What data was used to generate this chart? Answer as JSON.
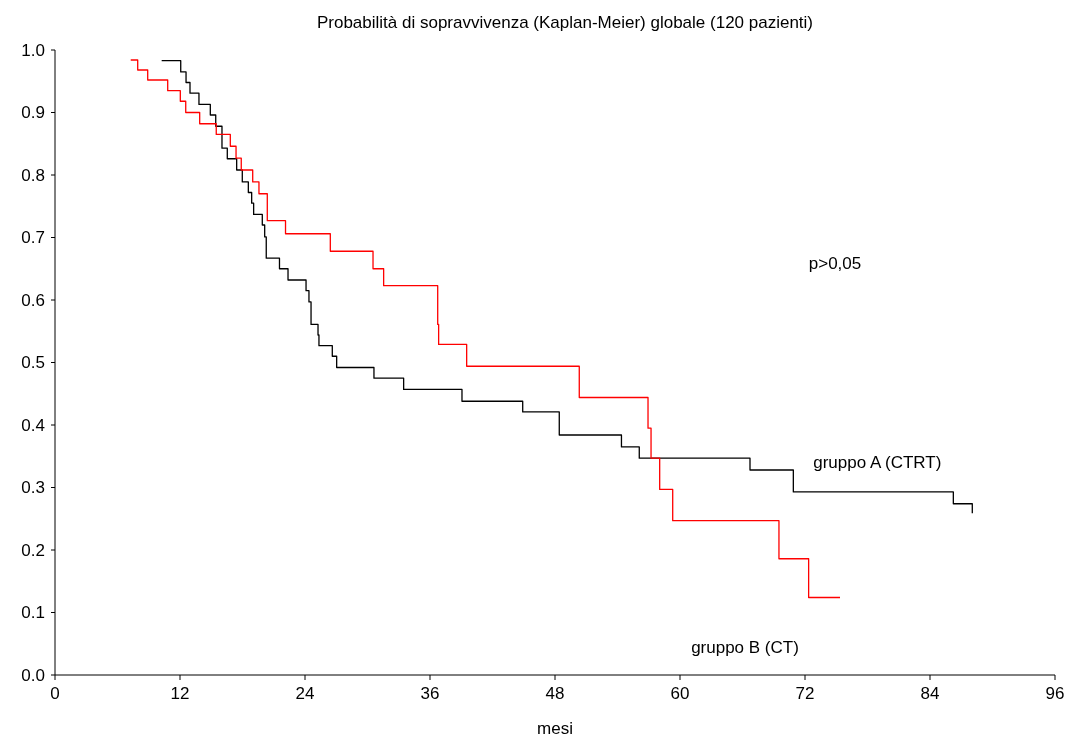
{
  "chart_data": {
    "type": "step",
    "title": "Probabilità di sopravvivenza (Kaplan-Meier) globale (120 pazienti)",
    "xlabel": "mesi",
    "annotations": [
      "p>0,05"
    ],
    "xlim": [
      0,
      96
    ],
    "ylim": [
      0,
      1
    ],
    "xticks": [
      0,
      12,
      24,
      36,
      48,
      60,
      72,
      84,
      96
    ],
    "yticks": [
      {
        "value": 0,
        "label": "0.0"
      },
      0.1,
      0.2,
      0.3,
      0.4,
      0.5,
      0.6,
      0.7,
      0.8,
      0.9,
      {
        "value": 1,
        "label": "1.0"
      }
    ],
    "grid": false,
    "legend": false,
    "marker": "none",
    "line_style": "solid",
    "series": [
      {
        "name": "gruppo A (CTRT)",
        "color": "#000000",
        "x": [
          10.24,
          12.07,
          12.58,
          12.96,
          13.82,
          14.91,
          15.43,
          16.03,
          16.54,
          17.44,
          17.98,
          18.56,
          18.88,
          19.07,
          19.9,
          20.13,
          20.28,
          21.55,
          22.37,
          24.1,
          24.38,
          24.58,
          25.25,
          25.34,
          26.62,
          27.04,
          30.62,
          33.47,
          39.07,
          44.9,
          48.41,
          54.38,
          56.09,
          66.72,
          70.88,
          86.24,
          88.06
        ],
        "values": [
          0.983,
          0.965,
          0.948,
          0.931,
          0.913,
          0.896,
          0.878,
          0.843,
          0.826,
          0.808,
          0.789,
          0.772,
          0.755,
          0.737,
          0.72,
          0.701,
          0.667,
          0.65,
          0.632,
          0.615,
          0.597,
          0.561,
          0.544,
          0.527,
          0.51,
          0.492,
          0.475,
          0.457,
          0.438,
          0.421,
          0.384,
          0.365,
          0.347,
          0.328,
          0.293,
          0.274,
          0.259
        ]
      },
      {
        "name": "gruppo B (CT)",
        "color": "#ff0000",
        "x": [
          7.27,
          7.94,
          8.9,
          10.82,
          12.03,
          12.55,
          13.89,
          15.48,
          16.83,
          17.38,
          17.88,
          18.98,
          19.58,
          20.38,
          22.13,
          26.43,
          30.53,
          31.55,
          36.74,
          36.83,
          39.52,
          50.33,
          56.93,
          57.22,
          58.05,
          59.3,
          69.5,
          72.35,
          75.36
        ],
        "values": [
          0.984,
          0.968,
          0.952,
          0.935,
          0.918,
          0.9,
          0.882,
          0.865,
          0.846,
          0.827,
          0.808,
          0.789,
          0.77,
          0.727,
          0.706,
          0.678,
          0.65,
          0.623,
          0.561,
          0.529,
          0.494,
          0.444,
          0.395,
          0.347,
          0.297,
          0.247,
          0.186,
          0.124,
          0.124
        ]
      }
    ]
  }
}
